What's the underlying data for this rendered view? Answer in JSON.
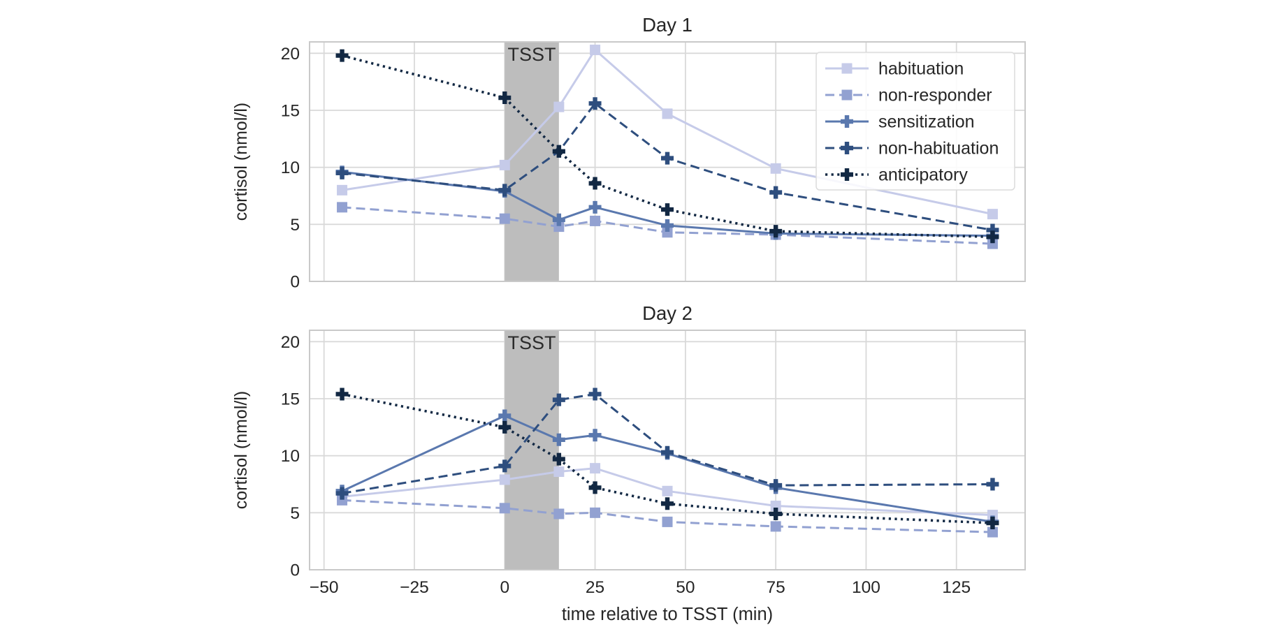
{
  "page": {
    "background": "#ffffff",
    "text_color": "#262626",
    "grid_color": "#d9d9d9",
    "frame_color": "#c9c9c9"
  },
  "chart_data": [
    {
      "type": "line",
      "title": "Day 1",
      "xlabel": "",
      "ylabel": "cortisol (nmol/l)",
      "x": [
        -45,
        0,
        15,
        25,
        45,
        75,
        135
      ],
      "xlim": [
        -54,
        144
      ],
      "ylim": [
        0,
        21
      ],
      "xticks": {
        "values": [
          -50,
          -25,
          0,
          25,
          50,
          75,
          100,
          125
        ],
        "labels": [
          "−50",
          "−25",
          "0",
          "25",
          "50",
          "75",
          "100",
          "125"
        ],
        "show_labels": false
      },
      "yticks": {
        "values": [
          0,
          5,
          10,
          15,
          20
        ],
        "labels": [
          "0",
          "5",
          "10",
          "15",
          "20"
        ]
      },
      "grid": true,
      "band": {
        "x0": 0,
        "x1": 15,
        "label": "TSST",
        "color": "#bdbdbd",
        "label_color": "#2b2b2b"
      },
      "series": [
        {
          "name": "habituation",
          "color": "#c6cbe9",
          "linestyle": "solid",
          "marker": "square",
          "values": [
            8.0,
            10.2,
            15.3,
            20.3,
            14.7,
            9.9,
            5.9
          ]
        },
        {
          "name": "non-responder",
          "color": "#92a1d1",
          "linestyle": "dashed",
          "marker": "square",
          "values": [
            6.5,
            5.5,
            4.8,
            5.3,
            4.3,
            4.1,
            3.3
          ]
        },
        {
          "name": "sensitization",
          "color": "#5a78ae",
          "linestyle": "solid",
          "marker": "plus",
          "values": [
            9.6,
            7.9,
            5.4,
            6.5,
            4.9,
            4.2,
            4.0
          ]
        },
        {
          "name": "non-habituation",
          "color": "#2e4e7e",
          "linestyle": "dashed",
          "marker": "plus",
          "values": [
            9.5,
            8.0,
            11.4,
            15.6,
            10.8,
            7.8,
            4.5
          ]
        },
        {
          "name": "anticipatory",
          "color": "#122843",
          "linestyle": "dotted",
          "marker": "plus",
          "values": [
            19.8,
            16.1,
            11.4,
            8.6,
            6.3,
            4.4,
            3.9
          ]
        }
      ],
      "legend": {
        "show": true,
        "position": "upper right",
        "entries": [
          "habituation",
          "non-responder",
          "sensitization",
          "non-habituation",
          "anticipatory"
        ]
      }
    },
    {
      "type": "line",
      "title": "Day 2",
      "xlabel": "time relative to TSST (min)",
      "ylabel": "cortisol (nmol/l)",
      "x": [
        -45,
        0,
        15,
        25,
        45,
        75,
        135
      ],
      "xlim": [
        -54,
        144
      ],
      "ylim": [
        0,
        21
      ],
      "xticks": {
        "values": [
          -50,
          -25,
          0,
          25,
          50,
          75,
          100,
          125
        ],
        "labels": [
          "−50",
          "−25",
          "0",
          "25",
          "50",
          "75",
          "100",
          "125"
        ],
        "show_labels": true
      },
      "yticks": {
        "values": [
          0,
          5,
          10,
          15,
          20
        ],
        "labels": [
          "0",
          "5",
          "10",
          "15",
          "20"
        ]
      },
      "grid": true,
      "band": {
        "x0": 0,
        "x1": 15,
        "label": "TSST",
        "color": "#bdbdbd",
        "label_color": "#2b2b2b"
      },
      "series": [
        {
          "name": "habituation",
          "color": "#c6cbe9",
          "linestyle": "solid",
          "marker": "square",
          "values": [
            6.4,
            7.9,
            8.6,
            8.9,
            6.9,
            5.6,
            4.8
          ]
        },
        {
          "name": "non-responder",
          "color": "#92a1d1",
          "linestyle": "dashed",
          "marker": "square",
          "values": [
            6.1,
            5.4,
            4.9,
            5.0,
            4.2,
            3.8,
            3.3
          ]
        },
        {
          "name": "sensitization",
          "color": "#5a78ae",
          "linestyle": "solid",
          "marker": "plus",
          "values": [
            6.9,
            13.5,
            11.4,
            11.8,
            10.2,
            7.2,
            4.2
          ]
        },
        {
          "name": "non-habituation",
          "color": "#2e4e7e",
          "linestyle": "dashed",
          "marker": "plus",
          "values": [
            6.7,
            9.1,
            14.9,
            15.4,
            10.3,
            7.4,
            7.5
          ]
        },
        {
          "name": "anticipatory",
          "color": "#122843",
          "linestyle": "dotted",
          "marker": "plus",
          "values": [
            15.4,
            12.5,
            9.7,
            7.2,
            5.8,
            4.9,
            4.1
          ]
        }
      ],
      "legend": {
        "show": false,
        "position": "",
        "entries": []
      }
    }
  ]
}
